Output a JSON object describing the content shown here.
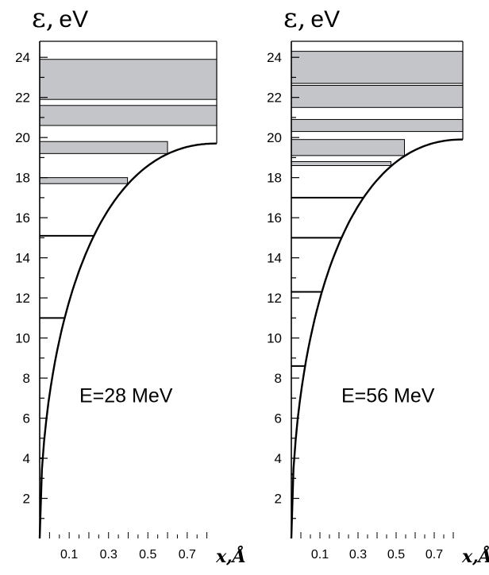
{
  "chart_data": [
    {
      "type": "line",
      "title": "",
      "ylabel": "ε, eV",
      "xlabel": "x,Å",
      "annotation": "E=28 MeV",
      "ylim": [
        0,
        24.8
      ],
      "xlim": [
        -0.05,
        0.85
      ],
      "yticks": [
        2,
        4,
        6,
        8,
        10,
        12,
        14,
        16,
        18,
        20,
        22,
        24
      ],
      "xticks": [
        0.1,
        0.3,
        0.5,
        0.7
      ],
      "xtick_labels": [
        "0.1",
        "0.3",
        "0.5",
        "0.7"
      ],
      "potential_max": 19.7,
      "levels": [
        4.0,
        11.0,
        15.1
      ],
      "bands": [
        [
          17.7,
          18.0
        ],
        [
          19.2,
          19.8
        ],
        [
          20.6,
          21.6
        ],
        [
          21.9,
          23.9
        ]
      ]
    },
    {
      "type": "line",
      "title": "",
      "ylabel": "ε, eV",
      "xlabel": "x,Å",
      "annotation": "E=56 MeV",
      "ylim": [
        0,
        24.8
      ],
      "xlim": [
        -0.05,
        0.85
      ],
      "yticks": [
        2,
        4,
        6,
        8,
        10,
        12,
        14,
        16,
        18,
        20,
        22,
        24
      ],
      "xticks": [
        0.1,
        0.3,
        0.5,
        0.7
      ],
      "xtick_labels": [
        "0.1",
        "0.3",
        "0.5",
        "0.7"
      ],
      "potential_max": 19.9,
      "levels": [
        3.2,
        8.6,
        12.3,
        15.0,
        17.0
      ],
      "bands": [
        [
          18.6,
          18.8
        ],
        [
          19.1,
          19.9
        ],
        [
          20.3,
          20.9
        ],
        [
          21.5,
          22.6
        ],
        [
          22.7,
          24.3
        ]
      ]
    }
  ]
}
